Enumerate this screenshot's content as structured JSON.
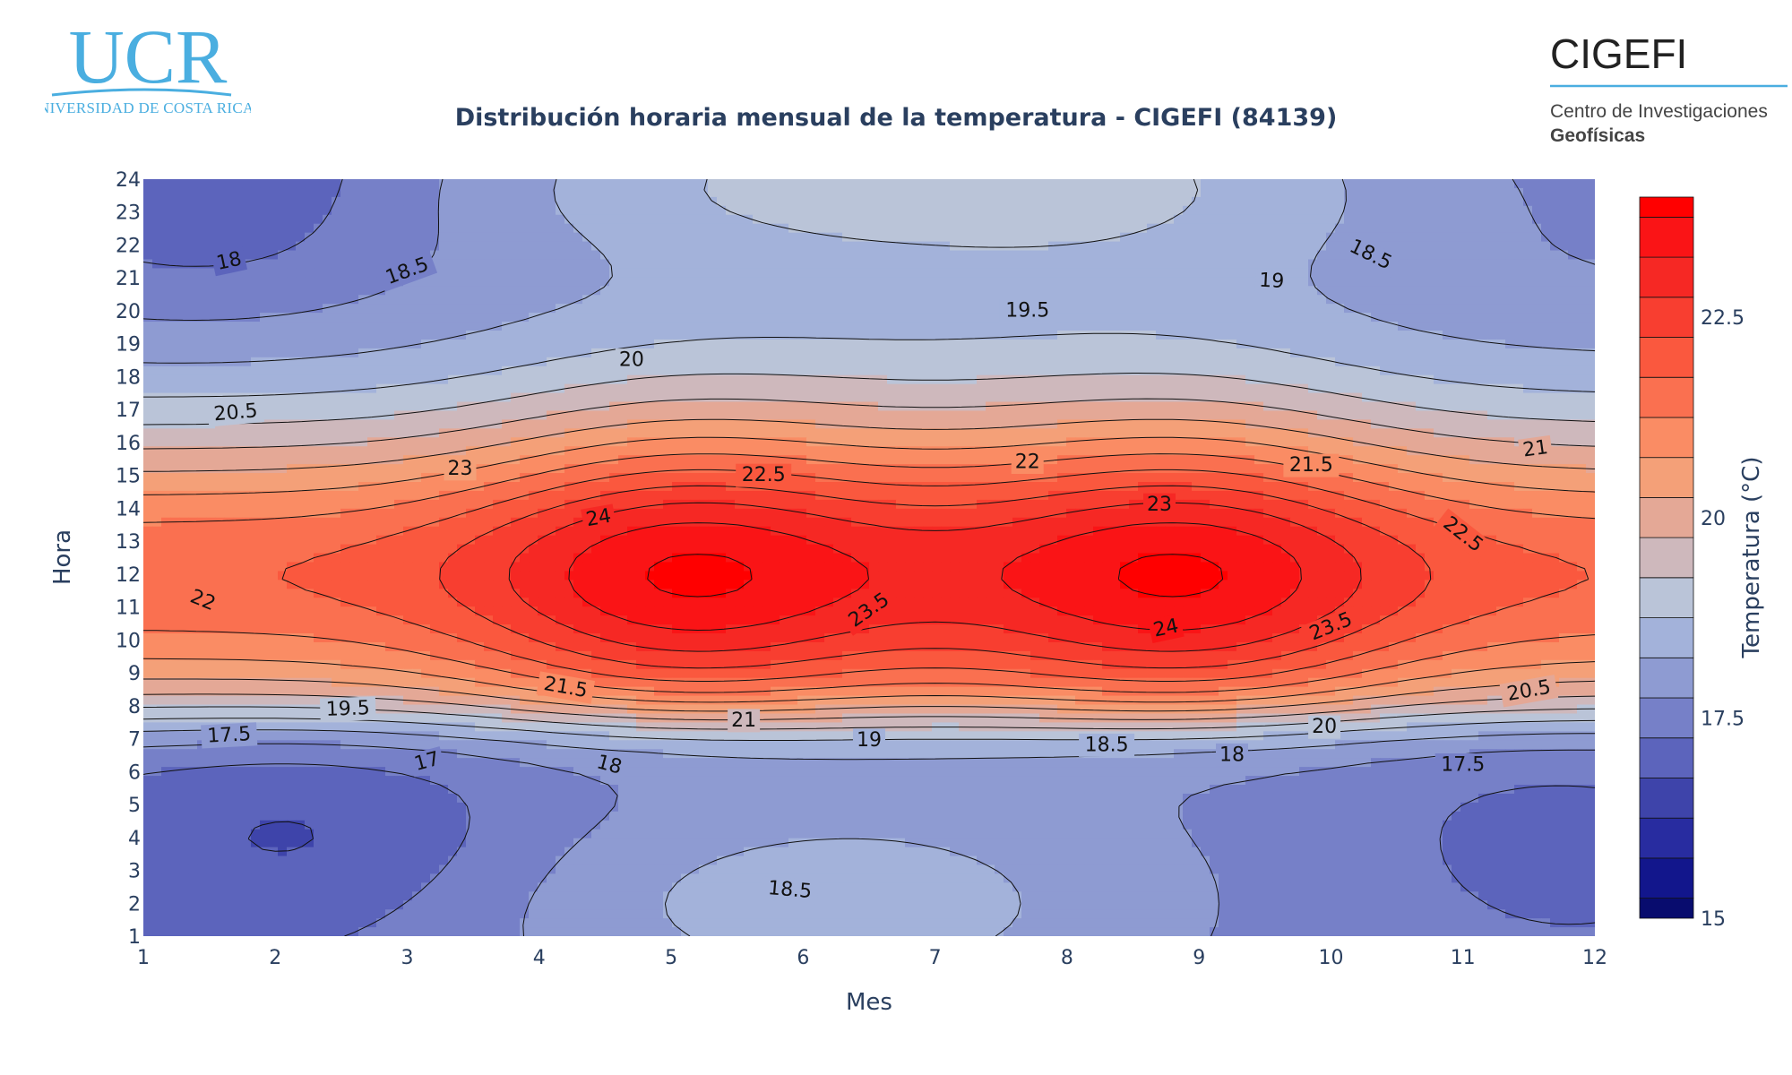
{
  "branding": {
    "ucr_letters": "UCR",
    "ucr_name": "UNIVERSIDAD DE COSTA RICA",
    "cigefi_name": "CIGEFI",
    "cigefi_sub1": "Centro de Investigaciones",
    "cigefi_sub2": "Geofísicas",
    "accent": "#4aaee0"
  },
  "chart_data": {
    "type": "contour",
    "title": "Distribución horaria mensual de la temperatura - CIGEFI (84139)",
    "xlabel": "Mes",
    "ylabel": "Hora",
    "colorbar_title": "Temperatura (°C)",
    "x": [
      1,
      2,
      3,
      4,
      5,
      6,
      7,
      8,
      9,
      10,
      11,
      12
    ],
    "y": [
      1,
      2,
      3,
      4,
      5,
      6,
      7,
      8,
      9,
      10,
      11,
      12,
      13,
      14,
      15,
      16,
      17,
      18,
      19,
      20,
      21,
      22,
      23,
      24
    ],
    "xlim": [
      1,
      12
    ],
    "ylim": [
      1,
      24
    ],
    "colorbar_range": [
      15,
      24
    ],
    "colorbar_ticks": [
      "15",
      "17.5",
      "20",
      "22.5"
    ],
    "contour_step": 0.5,
    "contour_labels": [
      {
        "text": "18",
        "x": 1.65,
        "y": 21.5,
        "angle": -12
      },
      {
        "text": "18.5",
        "x": 3.0,
        "y": 21.2,
        "angle": -20
      },
      {
        "text": "19",
        "x": 9.55,
        "y": 20.9,
        "angle": 3
      },
      {
        "text": "18.5",
        "x": 10.3,
        "y": 21.7,
        "angle": 26
      },
      {
        "text": "19.5",
        "x": 7.7,
        "y": 20.0,
        "angle": 0
      },
      {
        "text": "20",
        "x": 4.7,
        "y": 18.5,
        "angle": 0
      },
      {
        "text": "20.5",
        "x": 1.7,
        "y": 16.9,
        "angle": -5
      },
      {
        "text": "21",
        "x": 11.55,
        "y": 15.8,
        "angle": -8
      },
      {
        "text": "23",
        "x": 3.4,
        "y": 15.2,
        "angle": 0
      },
      {
        "text": "22.5",
        "x": 5.7,
        "y": 15.0,
        "angle": 0
      },
      {
        "text": "22",
        "x": 7.7,
        "y": 15.4,
        "angle": 0
      },
      {
        "text": "21.5",
        "x": 9.85,
        "y": 15.3,
        "angle": 0
      },
      {
        "text": "24",
        "x": 4.45,
        "y": 13.7,
        "angle": -10
      },
      {
        "text": "23",
        "x": 8.7,
        "y": 14.1,
        "angle": 0
      },
      {
        "text": "22.5",
        "x": 11.0,
        "y": 13.2,
        "angle": 38
      },
      {
        "text": "22",
        "x": 1.45,
        "y": 11.2,
        "angle": 22
      },
      {
        "text": "23.5",
        "x": 6.5,
        "y": 10.9,
        "angle": -35
      },
      {
        "text": "24",
        "x": 8.75,
        "y": 10.35,
        "angle": -12
      },
      {
        "text": "23.5",
        "x": 10.0,
        "y": 10.4,
        "angle": -22
      },
      {
        "text": "21.5",
        "x": 4.2,
        "y": 8.55,
        "angle": 10
      },
      {
        "text": "20.5",
        "x": 11.5,
        "y": 8.45,
        "angle": -10
      },
      {
        "text": "19.5",
        "x": 2.55,
        "y": 7.9,
        "angle": -2
      },
      {
        "text": "21",
        "x": 5.55,
        "y": 7.55,
        "angle": 0
      },
      {
        "text": "20",
        "x": 9.95,
        "y": 7.35,
        "angle": 0
      },
      {
        "text": "17.5",
        "x": 1.65,
        "y": 7.1,
        "angle": -3
      },
      {
        "text": "19",
        "x": 6.5,
        "y": 6.95,
        "angle": 0
      },
      {
        "text": "18.5",
        "x": 8.3,
        "y": 6.8,
        "angle": 0
      },
      {
        "text": "17",
        "x": 3.15,
        "y": 6.3,
        "angle": -15
      },
      {
        "text": "18",
        "x": 4.53,
        "y": 6.2,
        "angle": 15
      },
      {
        "text": "18",
        "x": 9.25,
        "y": 6.5,
        "angle": 0
      },
      {
        "text": "17.5",
        "x": 11.0,
        "y": 6.2,
        "angle": 0
      },
      {
        "text": "18.5",
        "x": 5.9,
        "y": 2.4,
        "angle": 5
      }
    ]
  }
}
